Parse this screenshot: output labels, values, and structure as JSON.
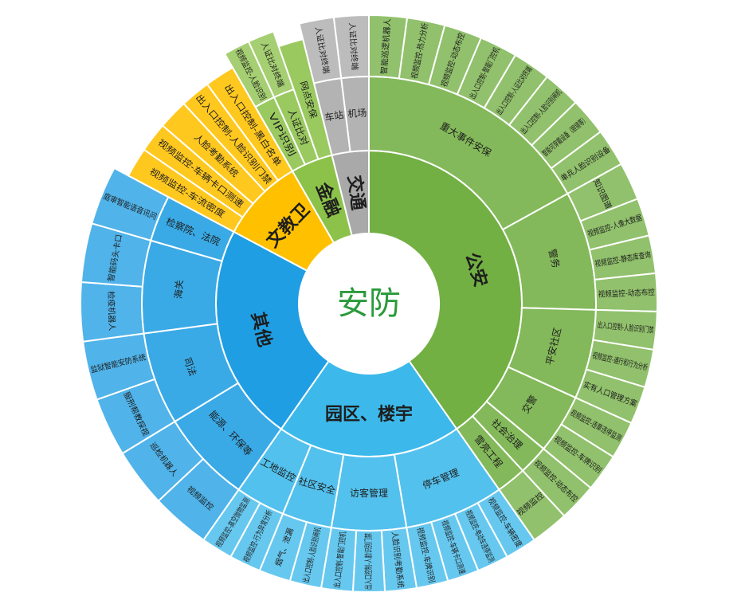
{
  "center": "安防",
  "sectors": [
    {
      "label": "公安",
      "color": "#72b043",
      "children": [
        {
          "label": "重大事件安保",
          "children": [
            {
              "label": "智能巡逻机器人"
            },
            {
              "label": "视频监控-热力分析"
            },
            {
              "label": "视频监控-动态布控"
            },
            {
              "label": "出入口控制-智能门控机"
            },
            {
              "label": "出入口控制-人证比对终端"
            },
            {
              "label": "出入口控制-人脸识别闸机"
            },
            {
              "label": "智能可穿戴设备（眼镜等）"
            },
            {
              "label": "单兵人脸识别设备"
            }
          ]
        },
        {
          "label": "警务",
          "children": [
            {
              "label": "知识图谱"
            },
            {
              "label": "视频监控-人像大数据"
            },
            {
              "label": "视频监控-静态库查询"
            },
            {
              "label": "视频监控-动态布控"
            }
          ]
        },
        {
          "label": "平安社区",
          "children": [
            {
              "label": "出入口控制-人脸识别门禁"
            },
            {
              "label": "视频监控-通行和行为分析"
            },
            {
              "label": "实有人口管理方案"
            }
          ]
        },
        {
          "label": "交警",
          "children": [
            {
              "label": "视频监控-违章违停监测"
            },
            {
              "label": "视频监控-车牌识别"
            }
          ]
        },
        {
          "label": "社会治理",
          "children": [
            {
              "label": "视频监控-动态布控"
            }
          ]
        },
        {
          "label": "雪亮工程",
          "children": [
            {
              "label": "视频监控"
            }
          ]
        }
      ]
    },
    {
      "label": "园区、楼宇",
      "color": "#3cb9ea",
      "children": [
        {
          "label": "停车管理",
          "children": [
            {
              "label": "视频监控-车辆密度"
            },
            {
              "label": "视频监控-电动车违停监测"
            },
            {
              "label": "视频监控-车辆卡口测速"
            },
            {
              "label": "视频监控-车牌识别"
            }
          ]
        },
        {
          "label": "访客管理",
          "children": [
            {
              "label": "人脸识别考勤系统"
            },
            {
              "label": "出入口控制-人脸识别门禁"
            },
            {
              "label": "出入口控制-智能门控机"
            }
          ]
        },
        {
          "label": "社区安全",
          "children": [
            {
              "label": "出入口控制-人脸识别闸机"
            },
            {
              "label": "烟气、泄漏"
            }
          ]
        },
        {
          "label": "工地监控",
          "children": [
            {
              "label": "视频监控-行为异常分析"
            },
            {
              "label": "视频监控-高空抛物监测"
            }
          ]
        }
      ]
    },
    {
      "label": "其他",
      "color": "#1f9ee3",
      "children": [
        {
          "label": "能源、环保等",
          "children": [
            {
              "label": "视频监控"
            },
            {
              "label": "巡检机器人"
            }
          ]
        },
        {
          "label": "司法",
          "children": [
            {
              "label": "服刑帮教探视"
            },
            {
              "label": "监狱智能安防系统"
            }
          ]
        },
        {
          "label": "海关",
          "children": [
            {
              "label": "检疫机器人"
            },
            {
              "label": "智能码头卡口"
            }
          ]
        },
        {
          "label": "检察院、法院",
          "children": [
            {
              "label": "庭审智能语音讯问"
            }
          ]
        }
      ]
    },
    {
      "label": "文教卫",
      "color": "#ffc000",
      "children": [
        {
          "label": "视频监控-车流密度"
        },
        {
          "label": "视频监控-车辆卡口测速"
        },
        {
          "label": "人脸考勤系统"
        },
        {
          "label": "出入口控制-人脸识别门禁"
        },
        {
          "label": "出入口控制-黑白名单"
        }
      ]
    },
    {
      "label": "金融",
      "color": "#8cc24a",
      "children": [
        {
          "label": "VIP识别",
          "children": [
            {
              "label": "视频监控-人脸识别"
            }
          ]
        },
        {
          "label": "人证比对",
          "children": [
            {
              "label": "人证比对终端"
            }
          ]
        },
        {
          "label": "网点安保"
        }
      ]
    },
    {
      "label": "交通",
      "color": "#a9a9a9",
      "children": [
        {
          "label": "车站",
          "children": [
            {
              "label": "人证比对终端"
            }
          ]
        },
        {
          "label": "机场",
          "children": [
            {
              "label": "人证比对终端"
            }
          ]
        }
      ]
    }
  ]
}
